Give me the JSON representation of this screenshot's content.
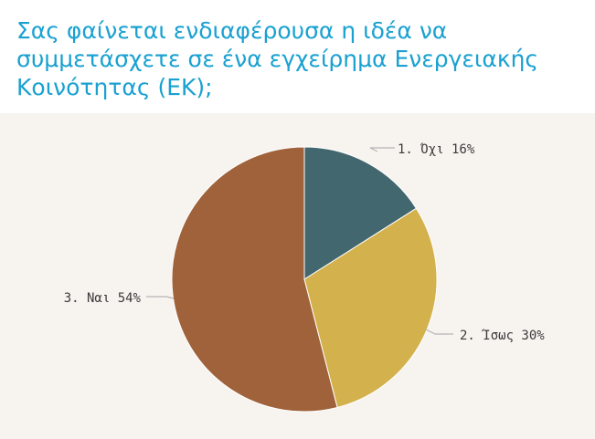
{
  "page": {
    "title": "Σας φαίνεται ενδιαφέρουσα η ιδέα να συμμετάσχετε σε ένα εγχείρημα Ενεργειακής Κοινότητας (ΕΚ);"
  },
  "colors": {
    "title": "#1aa1d1",
    "panel_background": "#f7f4f0",
    "leader_line": "#b5b5b5",
    "label_text": "#3b3b3b"
  },
  "chart_data": {
    "type": "pie",
    "title": "Σας φαίνεται ενδιαφέρουσα η ιδέα να συμμετάσχετε σε ένα εγχείρημα Ενεργειακής Κοινότητας (ΕΚ);",
    "start": "12 o'clock",
    "direction": "clockwise",
    "legend": "none",
    "slices": [
      {
        "label": "1. Όχι 16%",
        "value": 16,
        "color": "#43676e"
      },
      {
        "label": "2. Ίσως 30%",
        "value": 30,
        "color": "#d3b14c"
      },
      {
        "label": "3. Ναι 54%",
        "value": 54,
        "color": "#a0623a"
      }
    ]
  }
}
